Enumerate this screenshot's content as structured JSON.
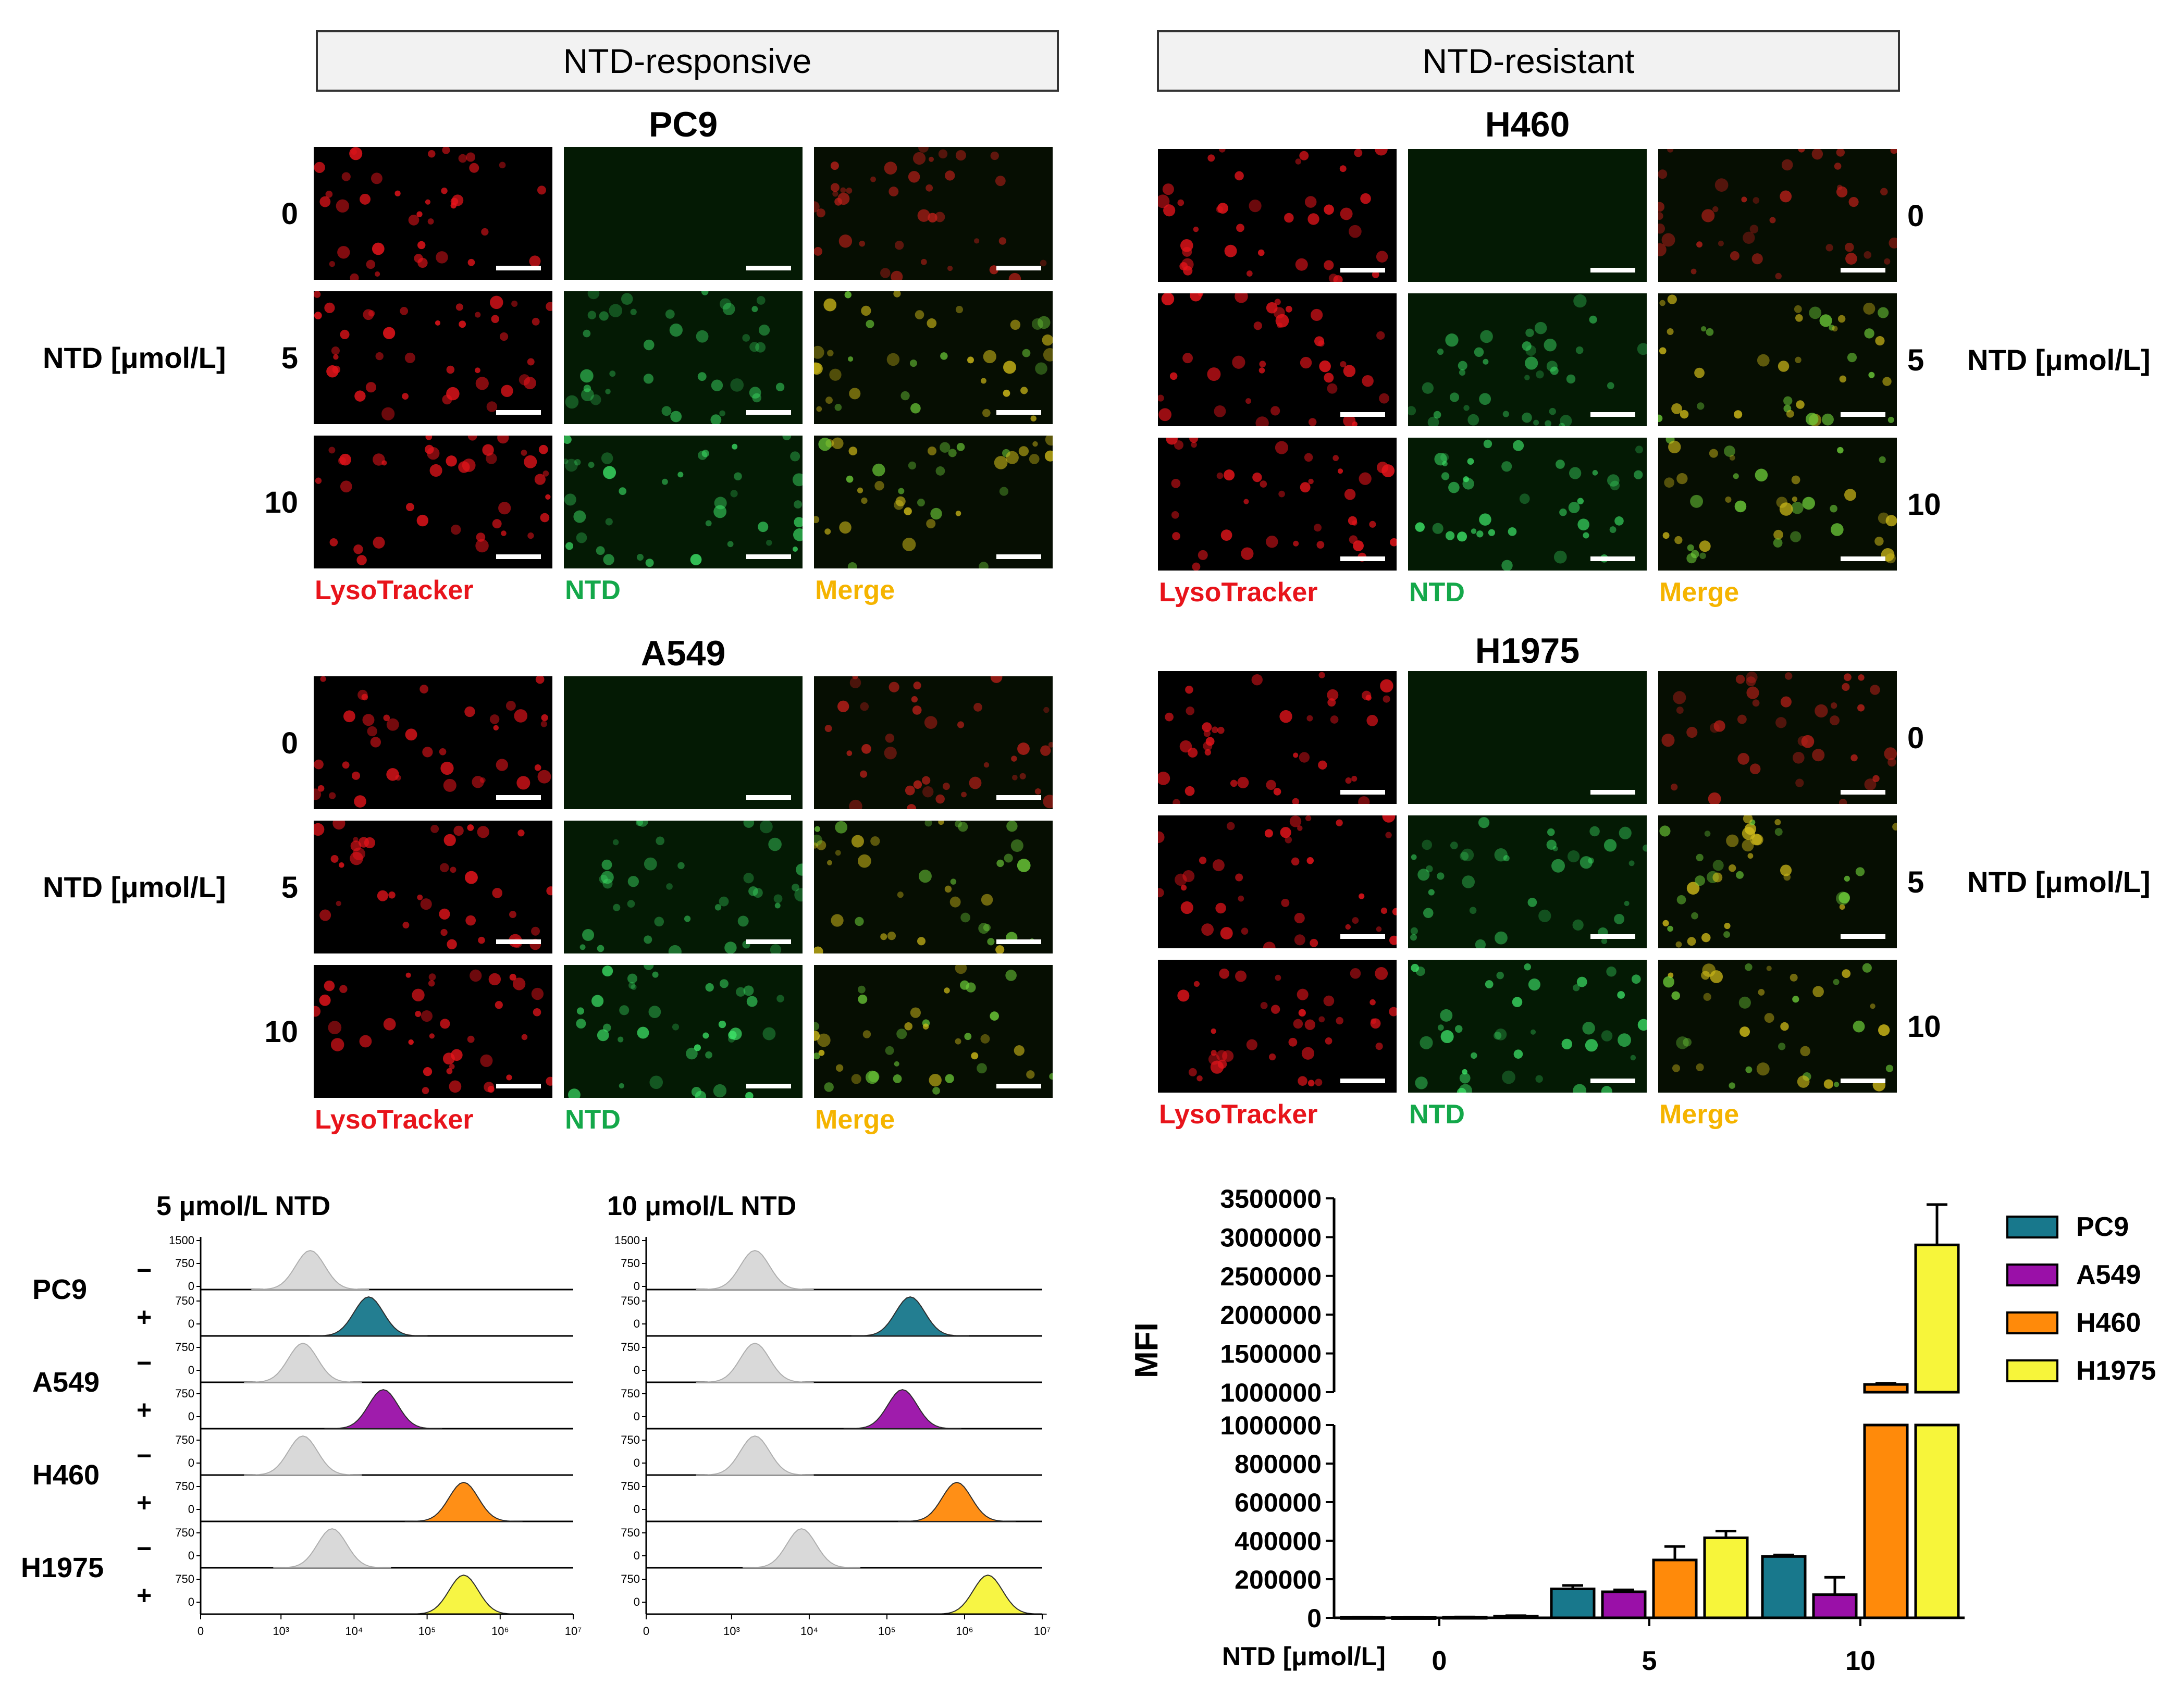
{
  "groups": {
    "responsive": "NTD-responsive",
    "resistant": "NTD-resistant"
  },
  "cells": {
    "pc9": "PC9",
    "h460": "H460",
    "a549": "A549",
    "h1975": "H1975"
  },
  "row_values": [
    "0",
    "5",
    "10"
  ],
  "row_axis_label": "NTD [μmol/L]",
  "channels": {
    "lyso": "LysoTracker",
    "ntd": "NTD",
    "merge": "Merge"
  },
  "colors": {
    "lyso": "#e8141b",
    "ntd": "#14a84a",
    "merge": "#f5b400",
    "PC9": "#18788c",
    "A549": "#9a10a8",
    "H460": "#ff8a0a",
    "H1975": "#f7f53a",
    "control": "#d8d8d8"
  },
  "histograms": {
    "panels": [
      {
        "title": "5 μmol/L NTD"
      },
      {
        "title": "10 μmol/L NTD"
      }
    ],
    "y_ticks_top": [
      "1500",
      "750",
      "0"
    ],
    "y_ticks": [
      "750",
      "0"
    ],
    "x_tick_labels": [
      "0",
      "10³",
      "10⁴",
      "10⁵",
      "10⁶",
      "10⁷"
    ],
    "rows": [
      {
        "cell": "PC9",
        "minus": "−",
        "plus": "+"
      },
      {
        "cell": "A549",
        "minus": "−",
        "plus": "+"
      },
      {
        "cell": "H460",
        "minus": "−",
        "plus": "+"
      },
      {
        "cell": "H1975",
        "minus": "−",
        "plus": "+"
      }
    ],
    "peak_log10": {
      "5": {
        "control": [
          3.4,
          3.3,
          3.3,
          3.7
        ],
        "treated": [
          4.2,
          4.4,
          5.5,
          5.5
        ]
      },
      "10": {
        "control": [
          3.3,
          3.3,
          3.3,
          3.9
        ],
        "treated": [
          5.3,
          5.2,
          5.9,
          6.3
        ]
      }
    }
  },
  "chart_data": {
    "type": "bar",
    "xlabel": "NTD [μmol/L]",
    "ylabel": "MFI",
    "categories": [
      "0",
      "5",
      "10"
    ],
    "y_ticks_upper": [
      "3500000",
      "3000000",
      "2500000",
      "2000000",
      "1500000",
      "1000000"
    ],
    "y_ticks_lower": [
      "1000000",
      "800000",
      "600000",
      "400000",
      "200000",
      "0"
    ],
    "ylim_lower": [
      0,
      1000000
    ],
    "ylim_upper": [
      1000000,
      3500000
    ],
    "series": [
      {
        "name": "PC9",
        "values": [
          2000,
          150000,
          318000
        ],
        "errors": [
          1000,
          18000,
          8000
        ]
      },
      {
        "name": "A549",
        "values": [
          1500,
          135000,
          120000
        ],
        "errors": [
          1000,
          10000,
          90000
        ]
      },
      {
        "name": "H460",
        "values": [
          3000,
          300000,
          1100000
        ],
        "errors": [
          1500,
          70000,
          15000
        ]
      },
      {
        "name": "H1975",
        "values": [
          8000,
          415000,
          2900000
        ],
        "errors": [
          3000,
          35000,
          520000
        ]
      }
    ]
  }
}
